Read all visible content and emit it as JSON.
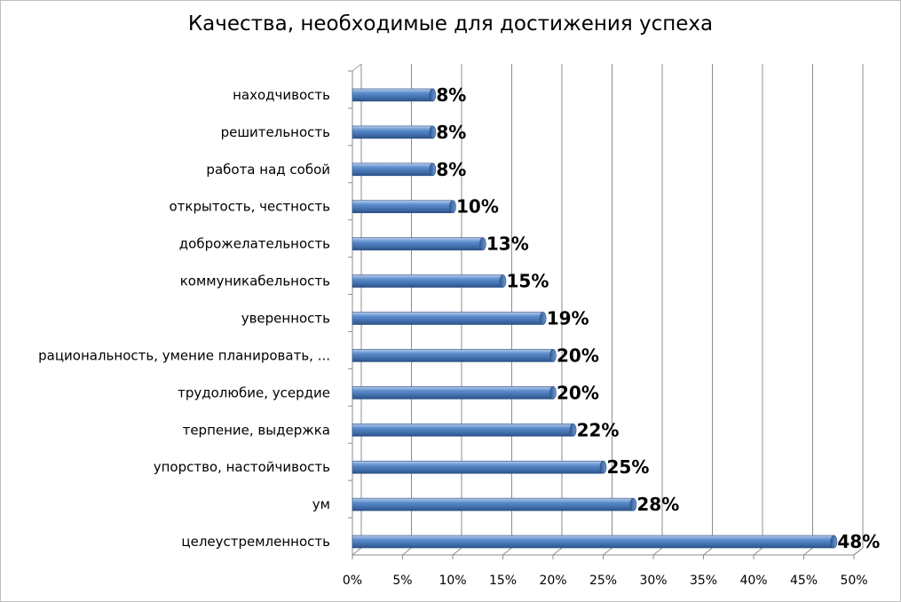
{
  "chart_data": {
    "type": "bar",
    "orientation": "horizontal",
    "title": "Качества, необходимые для достижения успеха",
    "categories": [
      "находчивость",
      "решительность",
      "работа над собой",
      "открытость, честность",
      "доброжелательность",
      "коммуникабельность",
      "уверенность",
      "рациональность, умение планировать, ...",
      "трудолюбие, усердие",
      "терпение, выдержка",
      "упорство, настойчивость",
      "ум",
      "целеустремленность"
    ],
    "values": [
      8,
      8,
      8,
      10,
      13,
      15,
      19,
      20,
      20,
      22,
      25,
      28,
      48
    ],
    "data_labels": [
      "8%",
      "8%",
      "8%",
      "10%",
      "13%",
      "15%",
      "19%",
      "20%",
      "20%",
      "22%",
      "25%",
      "28%",
      "48%"
    ],
    "xlim": [
      0,
      50
    ],
    "x_ticks": [
      "0%",
      "5%",
      "10%",
      "15%",
      "20%",
      "25%",
      "30%",
      "35%",
      "40%",
      "45%",
      "50%"
    ],
    "grid": true,
    "bar_color": "#4f81bd"
  }
}
